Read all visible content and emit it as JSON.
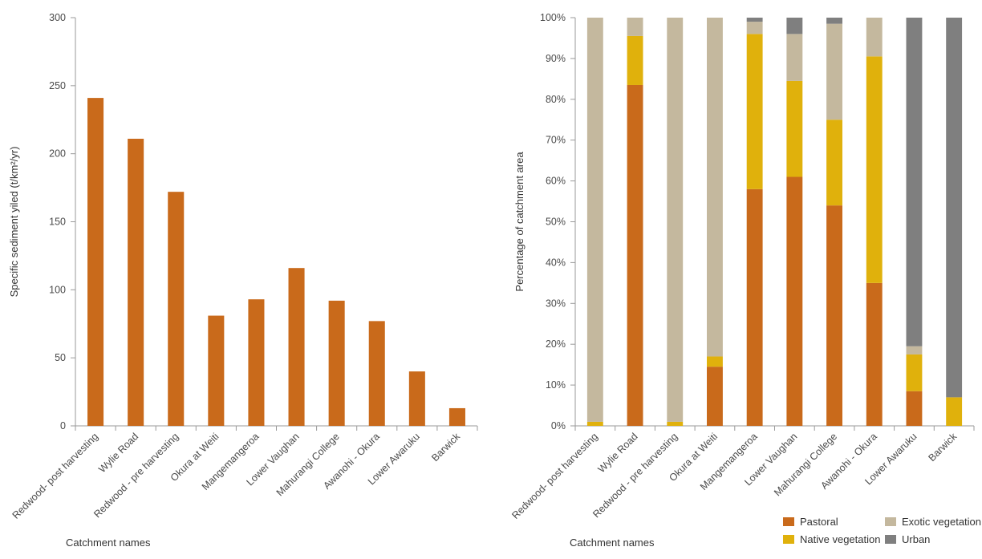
{
  "chart_data": [
    {
      "type": "bar",
      "xlabel": "Catchment names",
      "ylabel": "Specific sediment yiled (t/km²/yr)",
      "ylim": [
        0,
        300
      ],
      "yticks": [
        "0",
        "50",
        "100",
        "150",
        "200",
        "250",
        "300"
      ],
      "grid": false,
      "categories": [
        "Redwood- post harvesting",
        "Wylie Road",
        "Redwood - pre harvesting",
        "Okura at Weiti",
        "Mangemangeroa",
        "Lower Vaughan",
        "Mahurangi College",
        "Awanohi - Okura",
        "Lower Awaruku",
        "Barwick"
      ],
      "values": [
        241,
        211,
        172,
        81,
        93,
        116,
        92,
        77,
        40,
        13
      ],
      "color": "#c96a1b"
    },
    {
      "type": "bar",
      "stacked": true,
      "xlabel": "Catchment names",
      "ylabel": "Percentage of catchment area",
      "ylim": [
        0,
        100
      ],
      "yticks": [
        "0%",
        "10%",
        "20%",
        "30%",
        "40%",
        "50%",
        "60%",
        "70%",
        "80%",
        "90%",
        "100%"
      ],
      "grid": false,
      "legend_position": "bottom-right",
      "categories": [
        "Redwood- post harvesting",
        "Wylie Road",
        "Redwood - pre harvesting",
        "Okura at Weiti",
        "Mangemangeroa",
        "Lower Vaughan",
        "Mahurangi College",
        "Awanohi - Okura",
        "Lower Awaruku",
        "Barwick"
      ],
      "series": [
        {
          "name": "Pastoral",
          "color": "#c96a1b",
          "values": [
            0,
            83.5,
            0,
            14.5,
            58,
            61,
            54,
            35,
            8.5,
            0
          ]
        },
        {
          "name": "Native vegetation",
          "color": "#e0b10c",
          "values": [
            1,
            12,
            1,
            2.5,
            38,
            23.5,
            21,
            55.5,
            9,
            7
          ]
        },
        {
          "name": "Exotic vegetation",
          "color": "#c4b89e",
          "values": [
            99,
            4.5,
            99,
            83,
            3,
            11.5,
            23.5,
            9.5,
            2,
            0
          ]
        },
        {
          "name": "Urban",
          "color": "#7f7f7f",
          "values": [
            0,
            0,
            0,
            0,
            1,
            4,
            1.5,
            0,
            80.5,
            93
          ]
        }
      ]
    }
  ]
}
